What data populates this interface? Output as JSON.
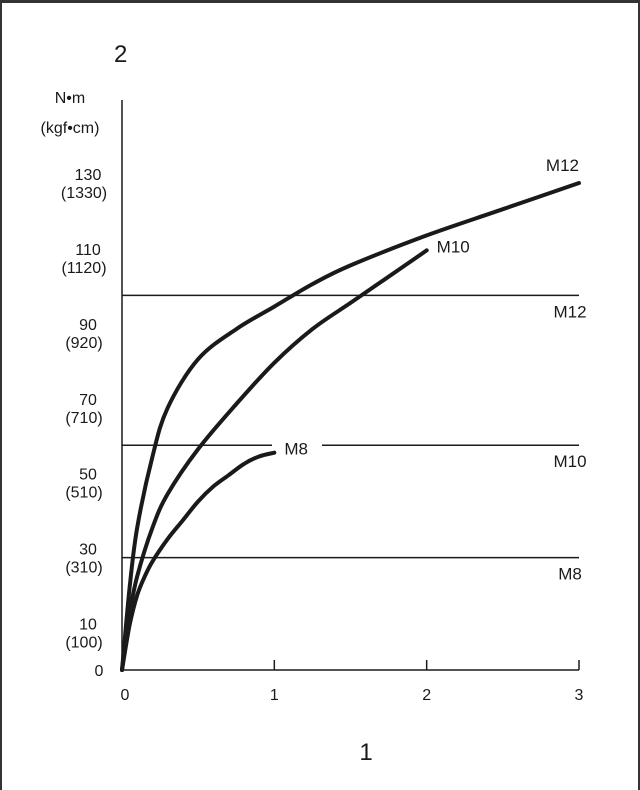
{
  "chart_data": {
    "type": "line",
    "corner_label": "2",
    "x_caption": "1",
    "ylabel_unit": "N•m",
    "ylabel_alt_unit": "(kgf•cm)",
    "xlim": [
      0,
      3
    ],
    "ylim": [
      0,
      130
    ],
    "x_ticks": [
      {
        "value": 0,
        "label": "0"
      },
      {
        "value": 1,
        "label": "1"
      },
      {
        "value": 2,
        "label": "2"
      },
      {
        "value": 3,
        "label": "3"
      }
    ],
    "y_ticks": [
      {
        "value": 0,
        "label": "0",
        "alt": ""
      },
      {
        "value": 10,
        "label": "10",
        "alt": "(100)"
      },
      {
        "value": 30,
        "label": "30",
        "alt": "(310)"
      },
      {
        "value": 50,
        "label": "50",
        "alt": "(510)"
      },
      {
        "value": 70,
        "label": "70",
        "alt": "(710)"
      },
      {
        "value": 90,
        "label": "90",
        "alt": "(920)"
      },
      {
        "value": 110,
        "label": "110",
        "alt": "(1120)"
      },
      {
        "value": 130,
        "label": "130",
        "alt": "(1330)"
      }
    ],
    "series": [
      {
        "name": "M12",
        "x": [
          0,
          0.05,
          0.1,
          0.2,
          0.3,
          0.5,
          0.75,
          1.0,
          1.25,
          1.5,
          2.0,
          2.5,
          3.0
        ],
        "y": [
          0,
          22,
          38,
          57,
          70,
          83,
          91,
          97,
          103,
          108,
          116,
          123,
          130
        ]
      },
      {
        "name": "M10",
        "x": [
          0,
          0.05,
          0.1,
          0.2,
          0.3,
          0.5,
          0.75,
          1.0,
          1.25,
          1.5,
          1.75,
          2.0
        ],
        "y": [
          0,
          15,
          25,
          38,
          47,
          59,
          71,
          82,
          91,
          98,
          105,
          112
        ]
      },
      {
        "name": "M8",
        "x": [
          0,
          0.05,
          0.1,
          0.15,
          0.2,
          0.3,
          0.4,
          0.5,
          0.6,
          0.7,
          0.8,
          0.9,
          1.0
        ],
        "y": [
          0,
          12,
          20,
          25,
          29,
          35,
          40,
          45,
          49,
          52,
          55,
          57,
          58
        ]
      }
    ],
    "reference_lines": [
      {
        "name": "M12",
        "y": 100
      },
      {
        "name": "M10",
        "y": 60
      },
      {
        "name": "M8",
        "y": 30
      }
    ]
  }
}
